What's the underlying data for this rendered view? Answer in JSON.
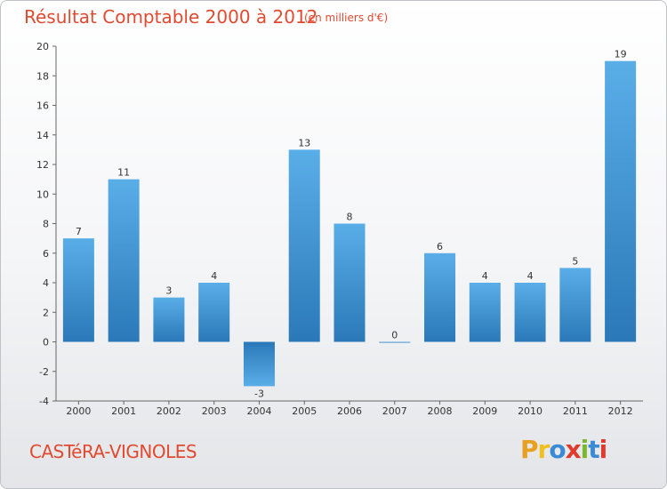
{
  "header": {
    "title": "Résultat Comptable 2000 à 2012",
    "subtitle": "(en milliers d'€)"
  },
  "footer": {
    "town": "CASTéRA-VIGNOLES",
    "logo_text": "Proxiti",
    "logo_colors": [
      "#e8a020",
      "#f2c01e",
      "#3a8ad6",
      "#e03a2e",
      "#7ab82e",
      "#3a8ad6",
      "#e03a2e"
    ]
  },
  "chart_data": {
    "type": "bar",
    "categories": [
      "2000",
      "2001",
      "2002",
      "2003",
      "2004",
      "2005",
      "2006",
      "2007",
      "2008",
      "2009",
      "2010",
      "2011",
      "2012"
    ],
    "values": [
      7,
      11,
      3,
      4,
      -3,
      13,
      8,
      0,
      6,
      4,
      4,
      5,
      19
    ],
    "data_labels": [
      "7",
      "11",
      "3",
      "4",
      "-3",
      "13",
      "8",
      "0",
      "6",
      "4",
      "4",
      "5",
      "19"
    ],
    "ylim": [
      -4,
      20
    ],
    "yticks": [
      -4,
      -2,
      0,
      2,
      4,
      6,
      8,
      10,
      12,
      14,
      16,
      18,
      20
    ],
    "grid": false,
    "bar_color_top": "#5aaee8",
    "bar_color_bottom": "#2a78b8"
  }
}
